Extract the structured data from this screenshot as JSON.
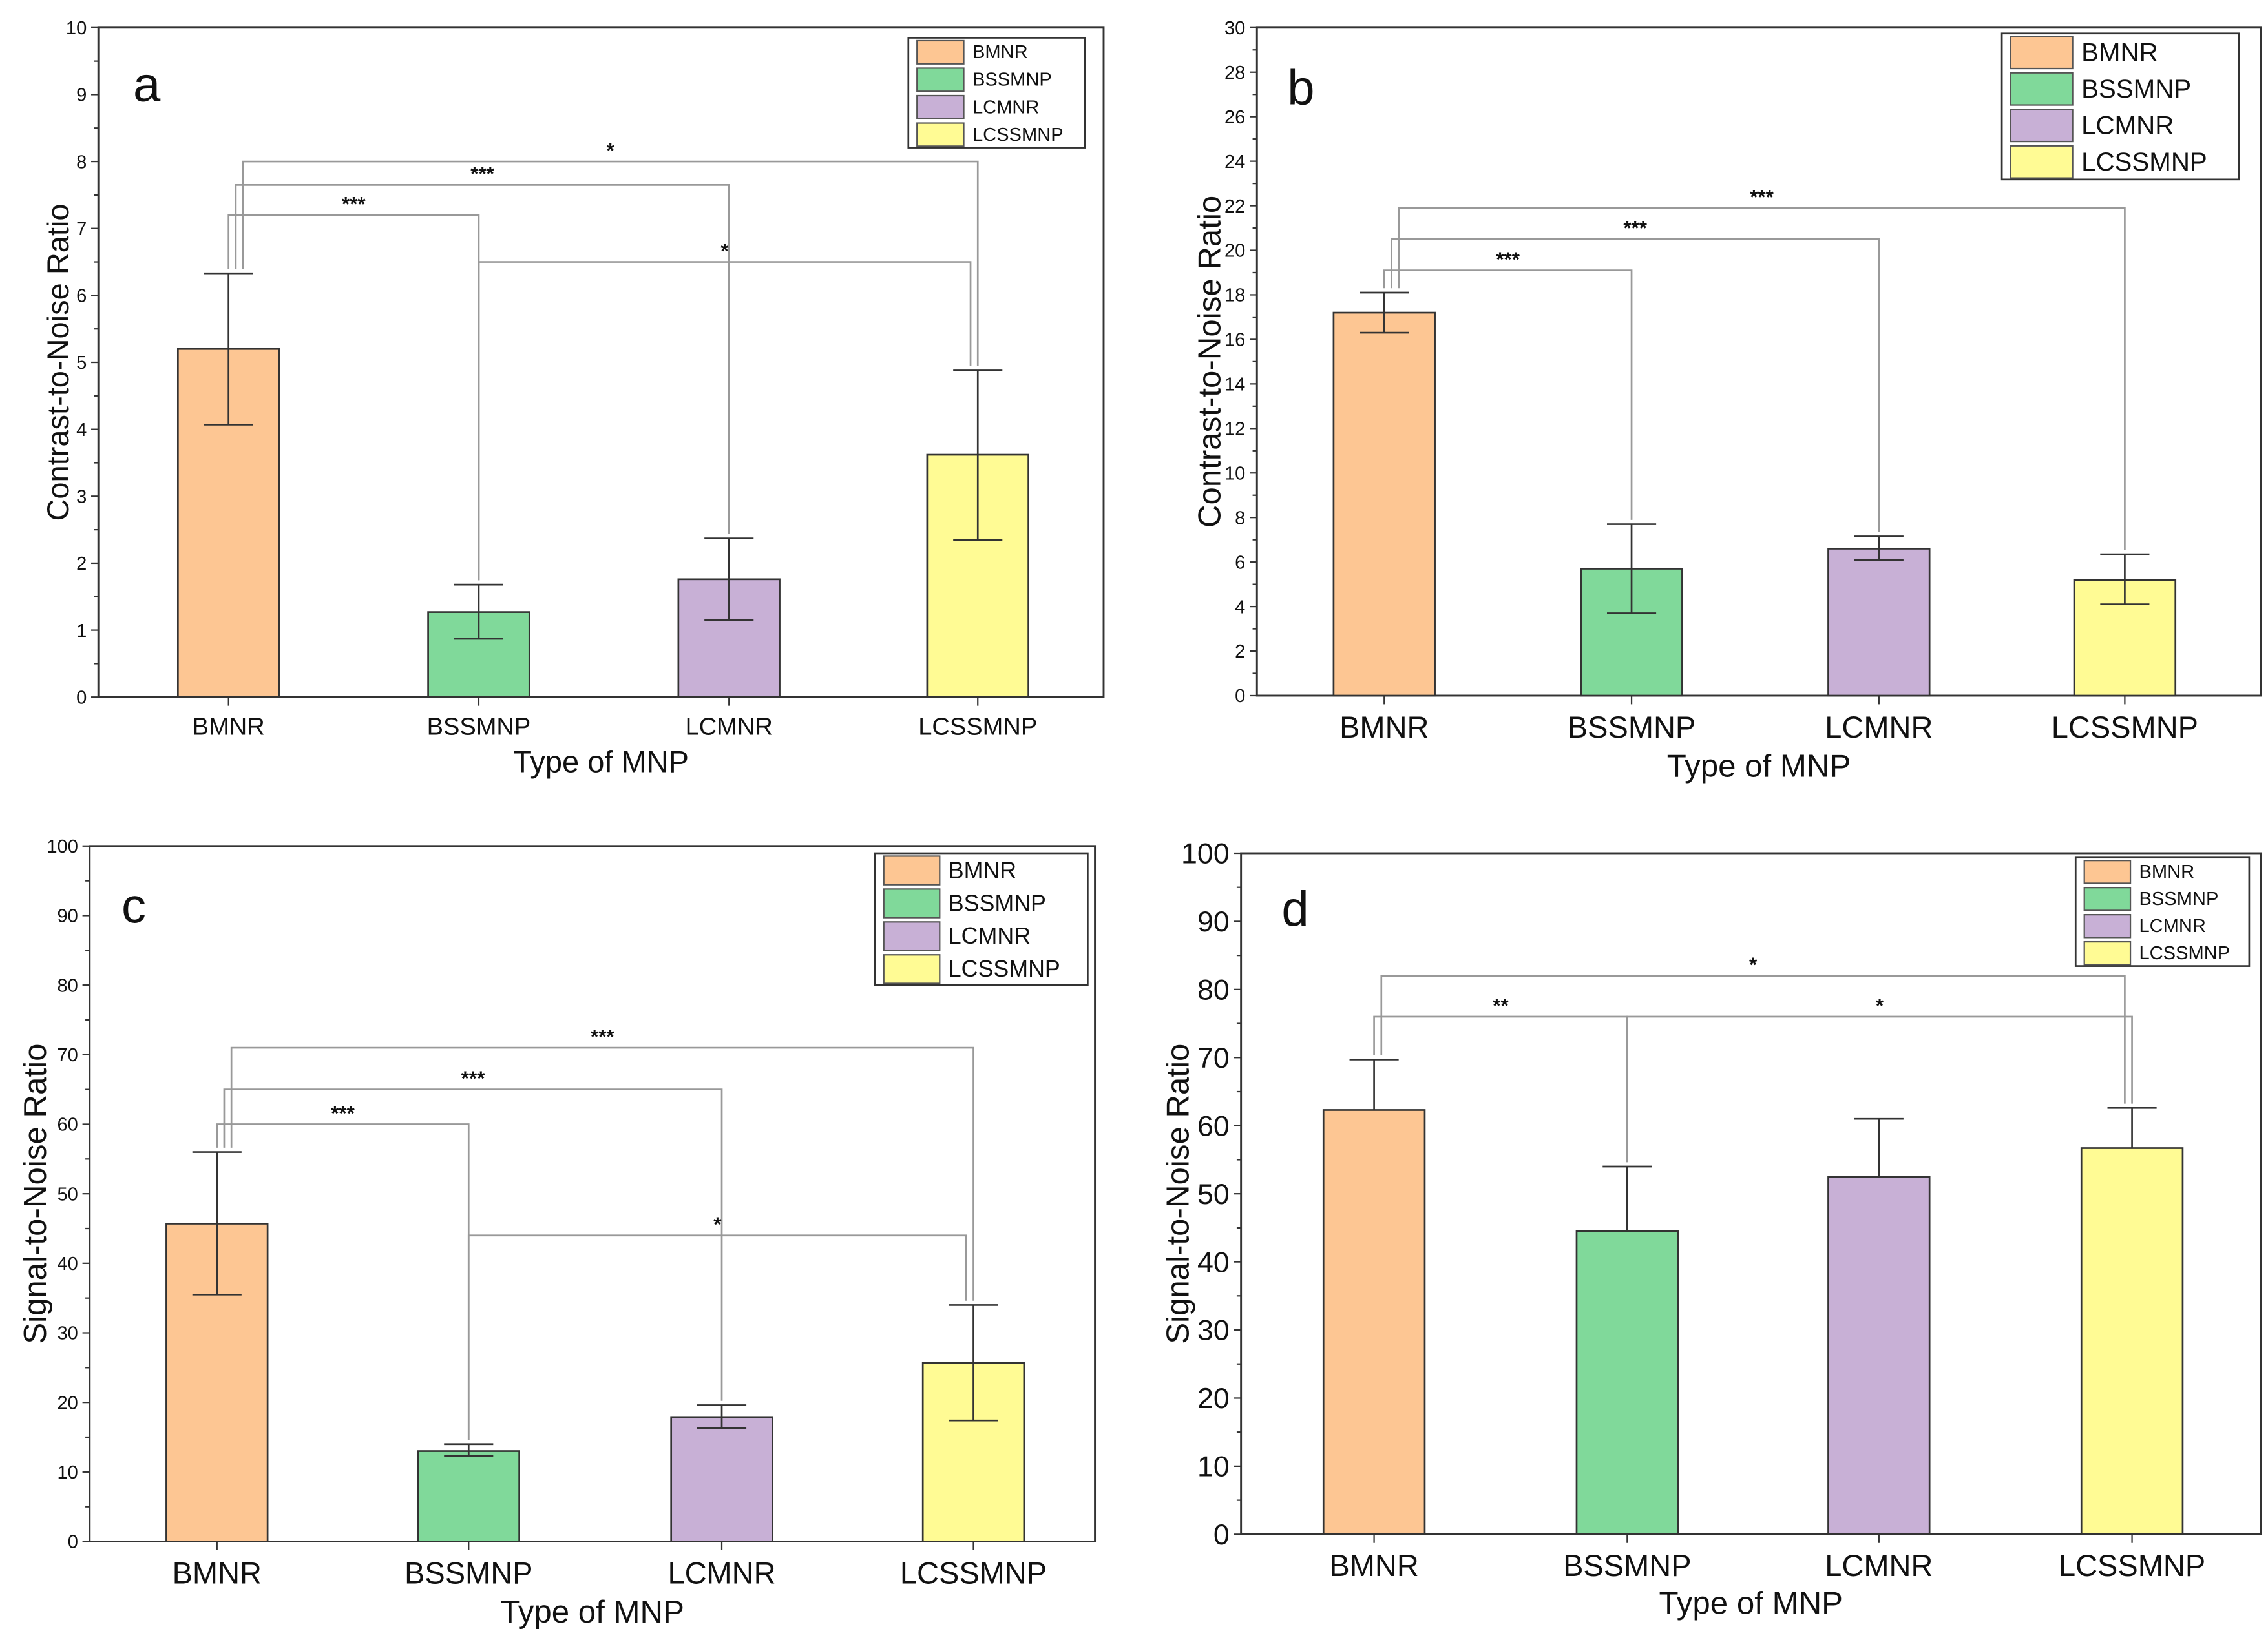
{
  "colors": {
    "BMNR": "#fdc693",
    "BSSMNP": "#80d99a",
    "LCMNR": "#c8b0d6",
    "LCSSMNP": "#fffb94",
    "axis": "#333333",
    "bracket": "#999999"
  },
  "chart_data": [
    {
      "type": "bar",
      "panel": "a",
      "categories": [
        "BMNR",
        "BSSMNP",
        "LCMNR",
        "LCSSMNP"
      ],
      "values": [
        5.2,
        1.27,
        1.76,
        3.62
      ],
      "err_low": [
        4.07,
        0.87,
        1.15,
        2.35
      ],
      "err_high": [
        6.33,
        1.68,
        2.37,
        4.88
      ],
      "xlabel": "Type of MNP",
      "ylabel": "Contrast-to-Noise Ratio",
      "ylim": [
        0,
        10
      ],
      "yticks": [
        "0",
        "1",
        "2",
        "3",
        "4",
        "5",
        "6",
        "7",
        "8",
        "9",
        "10"
      ],
      "legend": "top-right",
      "significance": [
        {
          "from": 0,
          "to": 1,
          "y": 7.2,
          "label": "***"
        },
        {
          "from": 0,
          "to": 2,
          "y": 7.65,
          "label": "***"
        },
        {
          "from": 0,
          "to": 3,
          "y": 8.0,
          "label": "*"
        },
        {
          "from": 1,
          "to": 3,
          "y": 6.5,
          "label": "*"
        }
      ]
    },
    {
      "type": "bar",
      "panel": "b",
      "categories": [
        "BMNR",
        "BSSMNP",
        "LCMNR",
        "LCSSMNP"
      ],
      "values": [
        17.2,
        5.7,
        6.6,
        5.2
      ],
      "err_low": [
        16.3,
        3.7,
        6.1,
        4.1
      ],
      "err_high": [
        18.1,
        7.7,
        7.15,
        6.35
      ],
      "xlabel": "Type of MNP",
      "ylabel": "Contrast-to-Noise Ratio",
      "ylim": [
        0,
        30
      ],
      "yticks": [
        "0",
        "2",
        "4",
        "6",
        "8",
        "10",
        "12",
        "14",
        "16",
        "18",
        "20",
        "22",
        "24",
        "26",
        "28",
        "30"
      ],
      "legend": "top-right",
      "significance": [
        {
          "from": 0,
          "to": 1,
          "y": 19.1,
          "label": "***"
        },
        {
          "from": 0,
          "to": 2,
          "y": 20.5,
          "label": "***"
        },
        {
          "from": 0,
          "to": 3,
          "y": 21.9,
          "label": "***"
        }
      ]
    },
    {
      "type": "bar",
      "panel": "c",
      "categories": [
        "BMNR",
        "BSSMNP",
        "LCMNR",
        "LCSSMNP"
      ],
      "values": [
        45.7,
        13.0,
        17.9,
        25.7
      ],
      "err_low": [
        35.5,
        12.3,
        16.3,
        17.4
      ],
      "err_high": [
        56.0,
        14.0,
        19.6,
        34.0
      ],
      "xlabel": "Type of MNP",
      "ylabel": "Signal-to-Noise Ratio",
      "ylim": [
        0,
        100
      ],
      "yticks": [
        "0",
        "10",
        "20",
        "30",
        "40",
        "50",
        "60",
        "70",
        "80",
        "90",
        "100"
      ],
      "legend": "top-right",
      "significance": [
        {
          "from": 0,
          "to": 1,
          "y": 60,
          "label": "***"
        },
        {
          "from": 0,
          "to": 2,
          "y": 65,
          "label": "***"
        },
        {
          "from": 0,
          "to": 3,
          "y": 71,
          "label": "***"
        },
        {
          "from": 1,
          "to": 3,
          "y": 44,
          "label": "*"
        }
      ]
    },
    {
      "type": "bar",
      "panel": "d",
      "categories": [
        "BMNR",
        "BSSMNP",
        "LCMNR",
        "LCSSMNP"
      ],
      "values": [
        62.3,
        44.5,
        52.5,
        56.7
      ],
      "err_low": [
        62.3,
        44.5,
        52.5,
        56.7
      ],
      "err_high": [
        69.7,
        54.0,
        61.0,
        62.6
      ],
      "xlabel": "Type of MNP",
      "ylabel": "Signal-to-Noise Ratio",
      "ylim": [
        0,
        100
      ],
      "yticks": [
        "0",
        "10",
        "20",
        "30",
        "40",
        "50",
        "60",
        "70",
        "80",
        "90",
        "100"
      ],
      "legend": "top-right",
      "significance": [
        {
          "from": 0,
          "to": 1,
          "y": 76,
          "label": "**"
        },
        {
          "from": 1,
          "to": 3,
          "y": 76,
          "label": "*"
        },
        {
          "from": 0,
          "to": 3,
          "y": 82,
          "label": "*"
        }
      ]
    }
  ]
}
